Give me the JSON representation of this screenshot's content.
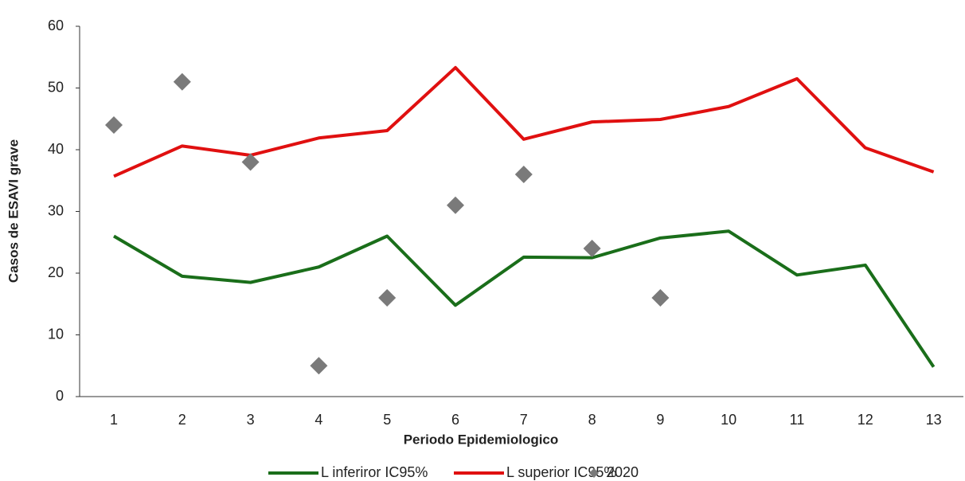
{
  "chart_data": {
    "type": "line",
    "categories": [
      "1",
      "2",
      "3",
      "4",
      "5",
      "6",
      "7",
      "8",
      "9",
      "10",
      "11",
      "12",
      "13"
    ],
    "xlabel": "Periodo Epidemiologico",
    "ylabel": "Casos de ESAVI grave",
    "ylim": [
      0,
      60
    ],
    "yticks": [
      0,
      10,
      20,
      30,
      40,
      50,
      60
    ],
    "series": [
      {
        "name": "L inferiror IC95%",
        "type": "line",
        "color": "#1a6e1a",
        "values": [
          26,
          19.5,
          18.5,
          21,
          26,
          14.8,
          22.6,
          22.5,
          25.7,
          26.8,
          19.7,
          21.3,
          4.8
        ]
      },
      {
        "name": "L superior IC95%",
        "type": "line",
        "color": "#e01010",
        "values": [
          35.7,
          40.6,
          39.1,
          41.9,
          43.1,
          53.3,
          41.7,
          44.5,
          44.9,
          47,
          51.5,
          40.3,
          36.4
        ]
      },
      {
        "name": "2020",
        "type": "scatter",
        "color": "#7a7a7a",
        "values": [
          44,
          51,
          38,
          5,
          16,
          31,
          36,
          24,
          16,
          null,
          null,
          null,
          null
        ]
      }
    ]
  }
}
